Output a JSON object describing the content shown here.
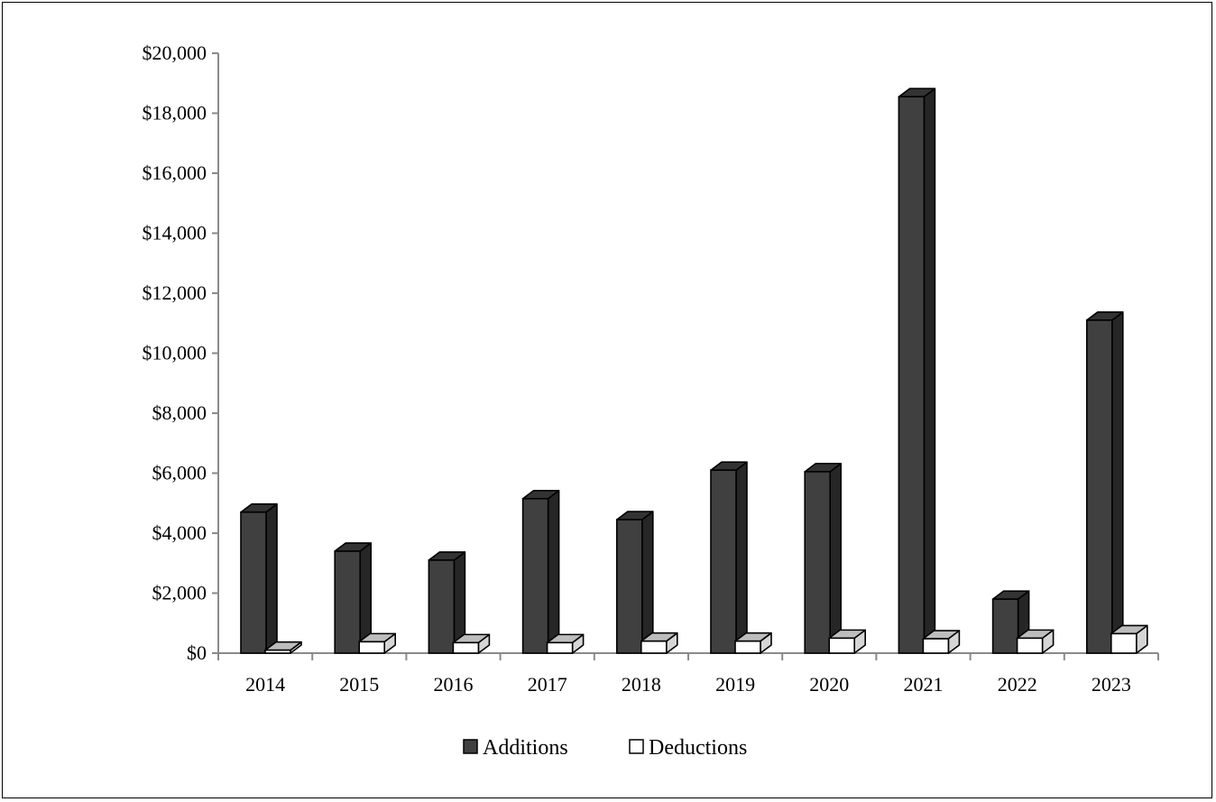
{
  "chart_data": {
    "type": "bar",
    "title": "",
    "xlabel": "",
    "ylabel": "",
    "categories": [
      "2014",
      "2015",
      "2016",
      "2017",
      "2018",
      "2019",
      "2020",
      "2021",
      "2022",
      "2023"
    ],
    "series": [
      {
        "name": "Additions",
        "color": "#404040",
        "values": [
          4700,
          3400,
          3100,
          5150,
          4450,
          6100,
          6050,
          18550,
          1800,
          11100
        ]
      },
      {
        "name": "Deductions",
        "color": "#ffffff",
        "values": [
          100,
          380,
          350,
          350,
          400,
          400,
          500,
          480,
          500,
          650
        ]
      }
    ],
    "ylim": [
      0,
      20000
    ],
    "yticks": [
      0,
      2000,
      4000,
      6000,
      8000,
      10000,
      12000,
      14000,
      16000,
      18000,
      20000
    ],
    "ytick_labels": [
      "$0",
      "$2,000",
      "$4,000",
      "$6,000",
      "$8,000",
      "$10,000",
      "$12,000",
      "$14,000",
      "$16,000",
      "$18,000",
      "$20,000"
    ],
    "grid": false,
    "legend_position": "bottom",
    "style": "3d-clustered-column"
  }
}
